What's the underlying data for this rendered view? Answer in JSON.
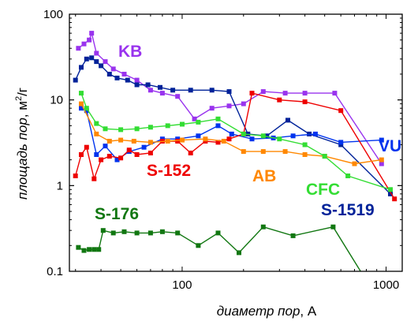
{
  "chart_data": {
    "type": "line",
    "x_scale": "log",
    "y_scale": "log",
    "xlim": [
      28,
      1200
    ],
    "ylim": [
      0.1,
      100
    ],
    "x_ticks": [
      {
        "value": 100,
        "label": "100"
      },
      {
        "value": 1000,
        "label": "1000"
      }
    ],
    "y_ticks": [
      {
        "value": 0.1,
        "label": "0.1"
      },
      {
        "value": 1,
        "label": "1"
      },
      {
        "value": 10,
        "label": "10"
      },
      {
        "value": 100,
        "label": "100"
      }
    ],
    "xlabel_italic": "диаметр пор",
    "xlabel_unit": ", А",
    "ylabel_italic": "площадь пор",
    "ylabel_unit": ", м",
    "ylabel_sup": "2",
    "ylabel_tail": "/г",
    "grid": false,
    "series": [
      {
        "name": "KB",
        "color": "#9933ee",
        "x": [
          31,
          33,
          35,
          36,
          38,
          42,
          46,
          52,
          60,
          70,
          80,
          95,
          115,
          140,
          170,
          200,
          250,
          320,
          400,
          560,
          950
        ],
        "y": [
          40,
          45,
          50,
          60,
          35,
          28,
          23,
          20,
          17,
          13,
          12,
          11,
          6,
          8,
          8.5,
          9,
          12.5,
          12,
          12,
          12,
          1.8
        ]
      },
      {
        "name": "S-1519",
        "color": "#002299",
        "x": [
          30,
          32,
          34,
          36,
          38,
          40,
          44,
          48,
          54,
          60,
          68,
          78,
          90,
          110,
          140,
          170,
          210,
          260,
          330,
          420,
          600,
          1050
        ],
        "y": [
          17,
          24,
          30,
          31,
          28,
          25,
          20,
          18,
          17,
          15,
          15,
          14,
          13,
          13,
          13,
          12.5,
          4,
          3.8,
          5.8,
          4,
          3,
          0.8
        ]
      },
      {
        "name": "VU",
        "color": "#0033ee",
        "x": [
          32,
          34,
          38,
          42,
          48,
          55,
          65,
          80,
          95,
          120,
          150,
          175,
          220,
          280,
          350,
          450,
          600,
          950
        ],
        "y": [
          8,
          7.5,
          2.3,
          2.9,
          2,
          2.5,
          2.8,
          3.5,
          3.5,
          3.8,
          5,
          4,
          3.5,
          3.6,
          3.8,
          4,
          3.2,
          3.4
        ]
      },
      {
        "name": "S-152",
        "color": "#ee0000",
        "x": [
          30,
          32,
          34,
          37,
          40,
          44,
          50,
          55,
          60,
          70,
          80,
          95,
          110,
          130,
          150,
          170,
          200,
          220,
          300,
          400,
          600,
          1100
        ],
        "y": [
          1.3,
          2.3,
          2.8,
          1.2,
          2,
          2.2,
          2.1,
          2.6,
          2.3,
          2.4,
          3.3,
          3.3,
          2.4,
          3.3,
          3.2,
          3.5,
          4,
          12,
          10,
          9.5,
          7.5,
          0.7
        ]
      },
      {
        "name": "AB",
        "color": "#ff8800",
        "x": [
          32,
          38,
          44,
          50,
          58,
          70,
          85,
          100,
          130,
          160,
          200,
          250,
          320,
          400,
          500,
          700,
          950
        ],
        "y": [
          9,
          4,
          3.3,
          3.4,
          3.3,
          3.2,
          3.3,
          3.4,
          3.5,
          3.3,
          2.5,
          2.5,
          2.5,
          2.3,
          2.2,
          1.8,
          2
        ]
      },
      {
        "name": "CFC",
        "color": "#33dd33",
        "x": [
          32,
          34,
          38,
          42,
          50,
          60,
          70,
          85,
          100,
          120,
          150,
          200,
          250,
          300,
          400,
          500,
          650,
          1050
        ],
        "y": [
          12,
          8,
          5.3,
          4.6,
          4.5,
          4.6,
          4.8,
          5,
          5.2,
          5.5,
          6,
          4,
          3.8,
          3.5,
          3,
          2.2,
          1.3,
          0.9
        ]
      },
      {
        "name": "S-176",
        "color": "#117711",
        "x": [
          31,
          33,
          35,
          37,
          39,
          41,
          46,
          52,
          60,
          70,
          80,
          95,
          120,
          150,
          190,
          250,
          350,
          550,
          750
        ],
        "y": [
          0.19,
          0.175,
          0.18,
          0.18,
          0.18,
          0.3,
          0.28,
          0.29,
          0.28,
          0.28,
          0.29,
          0.28,
          0.2,
          0.28,
          0.165,
          0.33,
          0.26,
          0.33,
          0.1
        ]
      }
    ]
  }
}
